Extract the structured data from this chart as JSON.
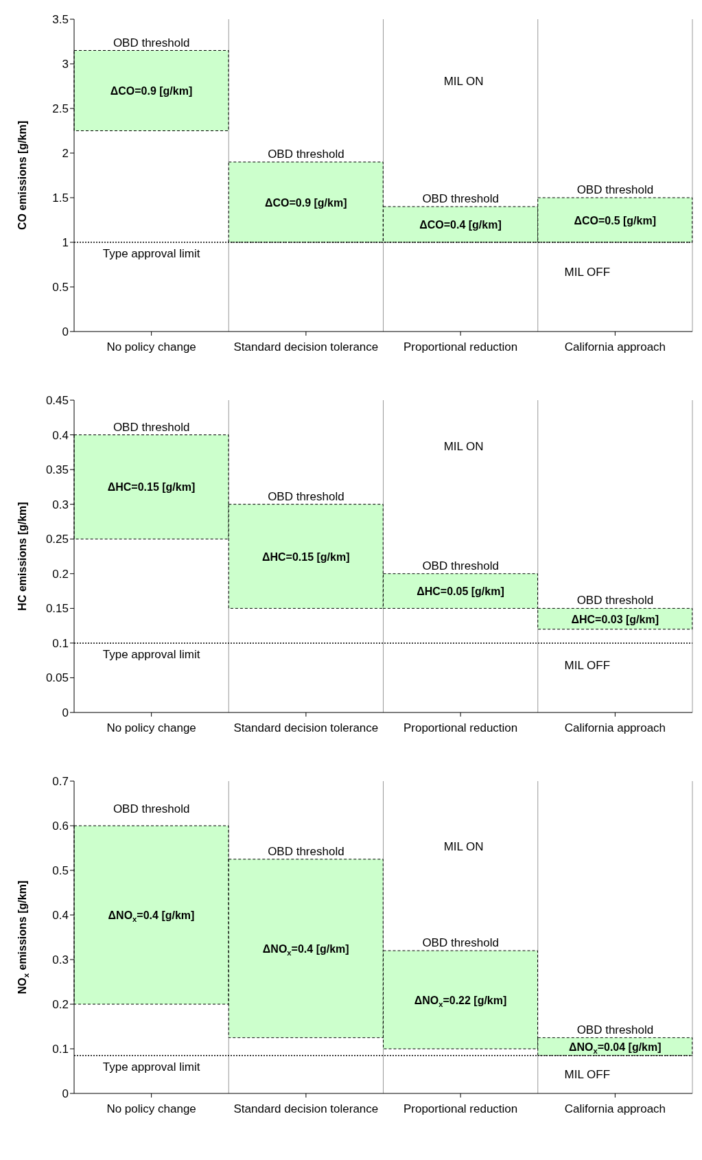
{
  "chart_data": [
    {
      "type": "bar",
      "ylabel": "CO emissions [g/km]",
      "categories": [
        "No policy change",
        "Standard decision tolerance",
        "Proportional reduction",
        "California approach"
      ],
      "base": [
        2.25,
        1.0,
        1.0,
        1.0
      ],
      "values": [
        0.9,
        0.9,
        0.4,
        0.5
      ],
      "color": "#ccffcc",
      "value_labels": [
        "ΔCO=0.9 [g/km]",
        "ΔCO=0.9 [g/km]",
        "ΔCO=0.4 [g/km]",
        "ΔCO=0.5 [g/km]"
      ],
      "ylim": [
        0,
        3.5
      ],
      "yticks": [
        0,
        0.5,
        1,
        1.5,
        2,
        2.5,
        3,
        3.5
      ],
      "grid": "x",
      "ref_lines": [
        {
          "axis": "y",
          "value": 1.0,
          "label": "Type approval limit",
          "line_style": "dotted"
        }
      ],
      "annotations": [
        {
          "text": "OBD threshold",
          "x": "No policy change",
          "y": 3.15
        },
        {
          "text": "OBD threshold",
          "x": "Standard decision tolerance",
          "y": 1.9
        },
        {
          "text": "OBD threshold",
          "x": "Proportional reduction",
          "y": 1.4
        },
        {
          "text": "OBD threshold",
          "x": "California approach",
          "y": 1.5
        },
        "MIL ON",
        "MIL OFF"
      ]
    },
    {
      "type": "bar",
      "ylabel": "HC emissions [g/km]",
      "categories": [
        "No policy change",
        "Standard decision tolerance",
        "Proportional reduction",
        "California approach"
      ],
      "base": [
        0.25,
        0.15,
        0.15,
        0.12
      ],
      "values": [
        0.15,
        0.15,
        0.05,
        0.03
      ],
      "color": "#ccffcc",
      "value_labels": [
        "ΔHC=0.15 [g/km]",
        "ΔHC=0.15 [g/km]",
        "ΔHC=0.05 [g/km]",
        "ΔHC=0.03 [g/km]"
      ],
      "ylim": [
        0,
        0.45
      ],
      "yticks": [
        0,
        0.05,
        0.1,
        0.15,
        0.2,
        0.25,
        0.3,
        0.35,
        0.4,
        0.45
      ],
      "grid": "x",
      "ref_lines": [
        {
          "axis": "y",
          "value": 0.1,
          "label": "Type approval limit",
          "line_style": "dotted"
        }
      ],
      "annotations": [
        {
          "text": "OBD threshold",
          "x": "No policy change",
          "y": 0.4
        },
        {
          "text": "OBD threshold",
          "x": "Standard decision tolerance",
          "y": 0.3
        },
        {
          "text": "OBD threshold",
          "x": "Proportional reduction",
          "y": 0.2
        },
        {
          "text": "OBD threshold",
          "x": "California approach",
          "y": 0.15
        },
        "MIL ON",
        "MIL OFF"
      ]
    },
    {
      "type": "bar",
      "ylabel": "NO$_{x}$ emissions [g/km]",
      "categories": [
        "No policy change",
        "Standard decision tolerance",
        "Proportional reduction",
        "California approach"
      ],
      "base": [
        0.2,
        0.125,
        0.1,
        0.085
      ],
      "values": [
        0.4,
        0.4,
        0.22,
        0.04
      ],
      "color": "#ccffcc",
      "value_labels": [
        "ΔNO$_{x}$=0.4 [g/km]",
        "ΔNO$_{x}$=0.4 [g/km]",
        "ΔNO$_{x}$=0.22 [g/km]",
        "ΔNO$_{x}$=0.04 [g/km]"
      ],
      "ylim": [
        0,
        0.7
      ],
      "yticks": [
        0,
        0.1,
        0.2,
        0.3,
        0.4,
        0.5,
        0.6,
        0.7
      ],
      "grid": "x",
      "ref_lines": [
        {
          "axis": "y",
          "value": 0.085,
          "label": "Type approval limit",
          "line_style": "dotted"
        }
      ],
      "annotations": [
        "OBD threshold",
        {
          "text": "OBD threshold",
          "x": "Standard decision tolerance",
          "y": 0.525
        },
        {
          "text": "OBD threshold",
          "x": "Proportional reduction",
          "y": 0.32
        },
        {
          "text": "OBD threshold",
          "x": "California approach",
          "y": 0.125
        },
        "MIL ON",
        "MIL OFF"
      ]
    }
  ]
}
